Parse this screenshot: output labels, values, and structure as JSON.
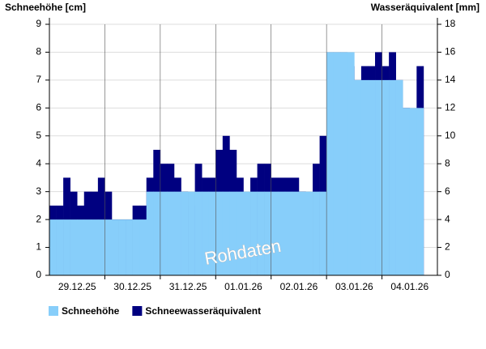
{
  "chart_data": {
    "type": "step-bar",
    "y_label": "Schneehöhe [cm]",
    "y2_label": "Wasseräquivalent [mm]",
    "watermark": "Rohdaten",
    "categories": [
      null,
      null,
      null,
      null,
      "29.12.25",
      null,
      null,
      null,
      null,
      null,
      null,
      null,
      "30.12.25",
      null,
      null,
      null,
      null,
      null,
      null,
      null,
      "31.12.25",
      null,
      null,
      null,
      null,
      null,
      null,
      null,
      "01.01.26",
      null,
      null,
      null,
      null,
      null,
      null,
      null,
      "02.01.26",
      null,
      null,
      null,
      null,
      null,
      null,
      null,
      "03.01.26",
      null,
      null,
      null,
      null,
      null,
      null,
      null,
      "04.01.26",
      null,
      null,
      null
    ],
    "series": [
      {
        "name": "Schneewasseräquivalent",
        "color": "#000080",
        "axis": "y2",
        "values": [
          5,
          5,
          7,
          6,
          5,
          6,
          6,
          7,
          6,
          4,
          4,
          4,
          5,
          5,
          7,
          9,
          8,
          8,
          7,
          6,
          5,
          8,
          7,
          7,
          9,
          10,
          9,
          7,
          5,
          7,
          8,
          8,
          7,
          7,
          7,
          7,
          6,
          5,
          8,
          10,
          16,
          16,
          16,
          15,
          14,
          15,
          15,
          16,
          15,
          16,
          14,
          12,
          11,
          15,
          null,
          null
        ]
      },
      {
        "name": "Schneehöhe",
        "color": "#87cefa",
        "values": [
          2,
          2,
          2,
          2,
          2,
          2,
          2,
          2,
          2,
          2,
          2,
          2,
          2,
          2,
          3,
          3,
          3,
          3,
          3,
          3,
          3,
          3,
          3,
          3,
          3,
          3,
          3,
          3,
          3,
          3,
          3,
          3,
          3,
          3,
          3,
          3,
          3,
          3,
          3,
          3,
          8,
          8,
          8,
          8,
          7,
          7,
          7,
          7,
          7,
          7,
          7,
          6,
          6,
          6,
          null,
          null
        ]
      }
    ],
    "ylim": [
      0,
      9
    ],
    "yticks": [
      0,
      1,
      2,
      3,
      4,
      5,
      6,
      7,
      8,
      9
    ],
    "y2lim": [
      0,
      18
    ],
    "y2ticks": [
      0,
      2,
      4,
      6,
      8,
      10,
      12,
      14,
      16,
      18
    ],
    "grid": true
  }
}
